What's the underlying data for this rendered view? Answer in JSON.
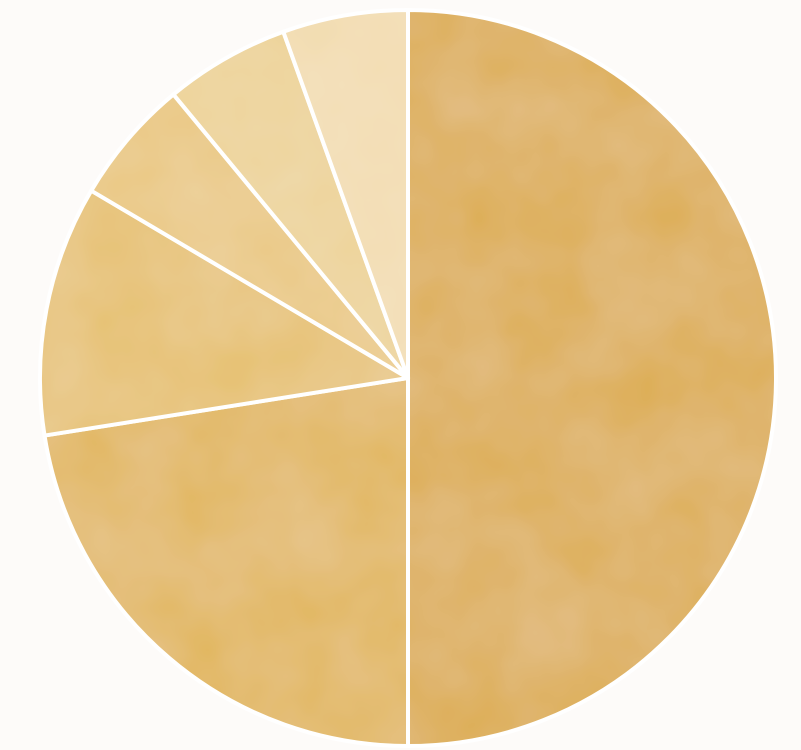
{
  "chart_data": {
    "type": "pie",
    "title": "",
    "start_angle_deg": 0,
    "direction": "clockwise",
    "legend": "none",
    "slices": [
      {
        "value": 50,
        "color": "#dcab4a"
      },
      {
        "value": 22.5,
        "color": "#e1b559"
      },
      {
        "value": 11,
        "color": "#e6c06e"
      },
      {
        "value": 5.5,
        "color": "#e9c67c"
      },
      {
        "value": 5.5,
        "color": "#ecd193"
      },
      {
        "value": 5.5,
        "color": "#f2dcb0"
      }
    ]
  }
}
